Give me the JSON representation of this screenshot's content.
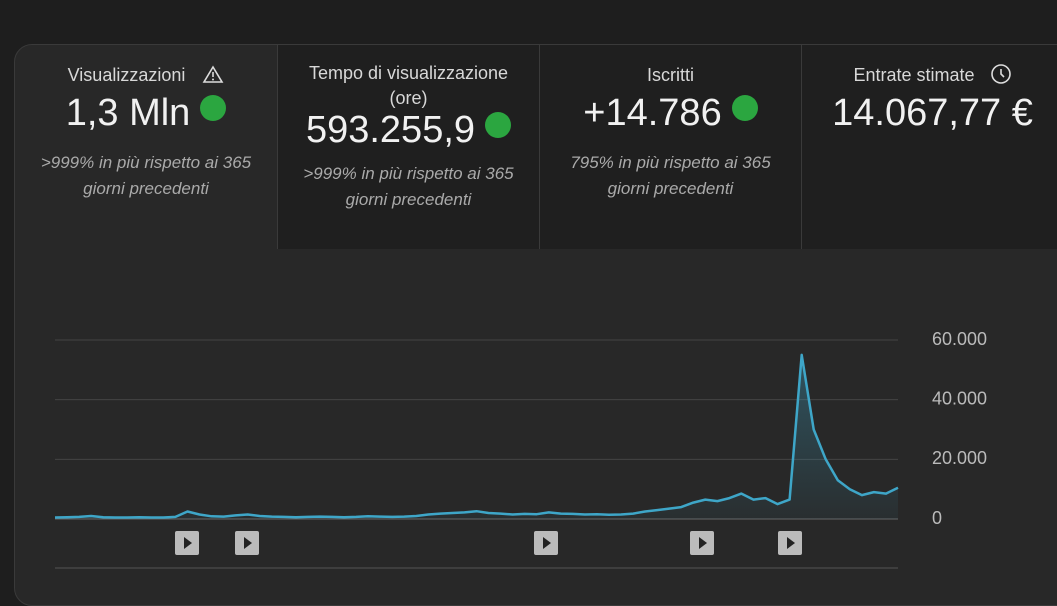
{
  "tabs": [
    {
      "label": "Visualizzazioni",
      "value": "1,3 Mln",
      "change": ">999% in più rispetto ai 365 giorni precedenti"
    },
    {
      "label": "Tempo di visualizzazione (ore)",
      "value": "593.255,9",
      "change": ">999% in più rispetto ai 365 giorni precedenti"
    },
    {
      "label": "Iscritti",
      "value": "+14.786",
      "change": "795% in più rispetto ai 365 giorni precedenti"
    },
    {
      "label": "Entrate stimate",
      "value": "14.067,77 €"
    }
  ],
  "chart_data": {
    "type": "line",
    "categories": [
      null,
      null,
      null,
      null,
      null,
      null,
      null,
      null,
      null,
      null,
      null,
      null,
      null,
      null,
      null,
      null,
      null,
      null,
      null,
      null,
      null,
      null,
      null,
      null,
      null,
      null,
      null,
      null,
      null,
      null,
      null,
      null,
      null,
      null,
      null,
      null,
      null,
      null,
      null,
      null,
      null,
      null,
      null,
      null,
      null,
      null,
      null,
      null,
      null,
      null,
      null,
      null,
      null,
      null,
      null,
      null,
      null,
      null,
      null,
      null,
      null,
      null,
      null,
      null,
      null,
      null,
      null,
      null,
      null,
      null,
      null
    ],
    "series": [
      {
        "color": "#3ea6c8",
        "values": [
          500,
          600,
          700,
          1000,
          600,
          500,
          500,
          600,
          500,
          500,
          700,
          2500,
          1500,
          900,
          800,
          1200,
          1500,
          1000,
          800,
          700,
          600,
          700,
          800,
          700,
          600,
          700,
          900,
          800,
          700,
          800,
          1000,
          1500,
          1800,
          2000,
          2200,
          2600,
          2000,
          1800,
          1500,
          1700,
          1600,
          2200,
          1800,
          1700,
          1500,
          1600,
          1400,
          1500,
          1800,
          2500,
          3000,
          3500,
          4000,
          5500,
          6500,
          6000,
          7000,
          8500,
          6500,
          7000,
          5000,
          6500,
          55000,
          30000,
          20000,
          13000,
          10000,
          8000,
          9000,
          8500,
          10500
        ]
      }
    ],
    "ylim": [
      0,
      60000
    ],
    "yticks": [
      0,
      {
        "value": 20000,
        "label": "20.000"
      },
      {
        "value": 40000,
        "label": "40.000"
      },
      {
        "value": 60000,
        "label": "60.000"
      }
    ],
    "grid": true
  }
}
